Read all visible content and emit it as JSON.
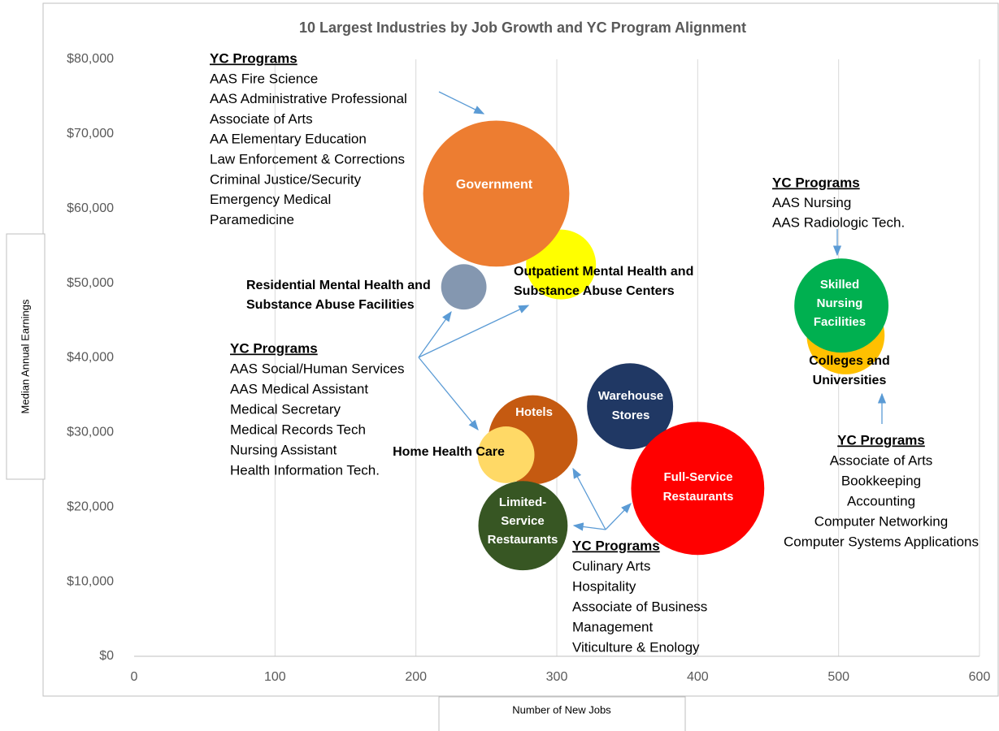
{
  "chart_data": {
    "type": "bubble",
    "title": "10 Largest Industries by Job Growth and YC Program Alignment",
    "x_label": "Number of New Jobs",
    "y_label": "Median Annual Earnings",
    "xlim": [
      0,
      600
    ],
    "xticks": [
      0,
      100,
      200,
      300,
      400,
      500,
      600
    ],
    "ylim": [
      0,
      80000
    ],
    "yticks": [
      {
        "value": 0,
        "label": "$0"
      },
      {
        "value": 10000,
        "label": "$10,000"
      },
      {
        "value": 20000,
        "label": "$20,000"
      },
      {
        "value": 30000,
        "label": "$30,000"
      },
      {
        "value": 40000,
        "label": "$40,000"
      },
      {
        "value": 50000,
        "label": "$50,000"
      },
      {
        "value": 60000,
        "label": "$60,000"
      },
      {
        "value": 70000,
        "label": "$70,000"
      },
      {
        "value": 80000,
        "label": "$80,000"
      }
    ],
    "grid": true,
    "points": [
      {
        "label": [
          "Outpatient Mental Health and",
          "Substance Abuse Centers"
        ],
        "x": 303,
        "y": 52500,
        "size": 185,
        "color": "#ffff00"
      },
      {
        "label": [
          "Government"
        ],
        "x": 257,
        "y": 62000,
        "size": 810,
        "color": "#ed7d31"
      },
      {
        "label": [
          "Residential Mental Health and",
          "Substance Abuse Facilities"
        ],
        "x": 234,
        "y": 49500,
        "size": 78,
        "color": "#8497b0"
      },
      {
        "label": [
          "Colleges and",
          "Universities"
        ],
        "x": 505,
        "y": 43000,
        "size": 230,
        "color": "#ffc000"
      },
      {
        "label": [
          "Skilled",
          "Nursing",
          "Facilities"
        ],
        "x": 502,
        "y": 47000,
        "size": 336,
        "color": "#00b050"
      },
      {
        "label": [
          "Warehouse",
          "Stores"
        ],
        "x": 352,
        "y": 33500,
        "size": 281,
        "color": "#203864"
      },
      {
        "label": [
          "Hotels"
        ],
        "x": 283,
        "y": 29000,
        "size": 302,
        "color": "#c55a11"
      },
      {
        "label": [
          "Home Health Care"
        ],
        "x": 264,
        "y": 27000,
        "size": 122,
        "color": "#ffd966"
      },
      {
        "label": [
          "Full-Service",
          "Restaurants"
        ],
        "x": 400,
        "y": 22500,
        "size": 672,
        "color": "#ff0000"
      },
      {
        "label": [
          "Limited-",
          "Service",
          "Restaurants"
        ],
        "x": 276,
        "y": 17500,
        "size": 302,
        "color": "#375623"
      }
    ],
    "annotations": [
      {
        "heading": "YC Programs",
        "items": [
          "AAS Fire Science",
          "AAS Administrative Professional",
          "Associate of Arts",
          "AA Elementary Education",
          "Law Enforcement & Corrections",
          "Criminal Justice/Security",
          "Emergency Medical",
          "Paramedicine"
        ]
      },
      {
        "heading": "YC Programs",
        "items": [
          "AAS Nursing",
          "AAS Radiologic Tech."
        ]
      },
      {
        "heading": "YC Programs",
        "items": [
          "AAS Social/Human Services",
          "AAS Medical Assistant",
          "Medical Secretary",
          "Medical Records Tech",
          "Nursing Assistant",
          "Health Information Tech."
        ]
      },
      {
        "heading": "YC Programs",
        "items": [
          "Culinary Arts",
          "Hospitality",
          "Associate of Business",
          "Management",
          "Viticulture & Enology"
        ]
      },
      {
        "heading": "YC Programs",
        "items": [
          "Associate of Arts",
          "Bookkeeping",
          "Accounting",
          "Computer Networking",
          "Computer Systems Applications"
        ]
      }
    ]
  }
}
